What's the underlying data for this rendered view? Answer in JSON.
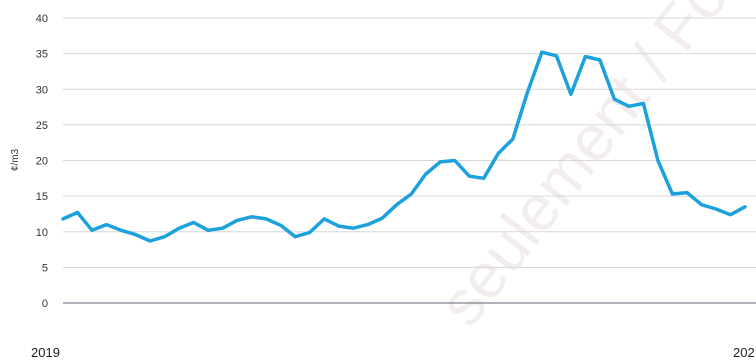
{
  "watermark": "seulement / For",
  "chart_data": {
    "type": "line",
    "title": "",
    "xlabel": "",
    "ylabel": "¢/m3",
    "ylim": [
      0,
      40
    ],
    "y_ticks": [
      "0",
      "5",
      "10",
      "15",
      "20",
      "25",
      "30",
      "35",
      "40"
    ],
    "x_labels": [
      "2019",
      "202"
    ],
    "grid": true,
    "legend": "none",
    "colors": {
      "series": "#1ba1dc",
      "grid": "#d7d7d7",
      "axis": "#5b6770"
    },
    "series": [
      {
        "values": [
          11.8,
          12.7,
          10.2,
          11.0,
          10.2,
          9.6,
          8.7,
          9.3,
          10.5,
          11.3,
          10.2,
          10.5,
          11.6,
          12.1,
          11.8,
          10.9,
          9.3,
          9.9,
          11.8,
          10.8,
          10.5,
          11.0,
          11.9,
          13.8,
          15.3,
          18.1,
          19.8,
          20.0,
          17.8,
          17.5,
          21.0,
          23.0,
          29.5,
          35.2,
          34.7,
          29.3,
          34.6,
          34.1,
          28.6,
          27.6,
          28.0,
          20.0,
          15.3,
          15.5,
          13.8,
          13.2,
          12.4,
          13.5
        ]
      }
    ]
  }
}
